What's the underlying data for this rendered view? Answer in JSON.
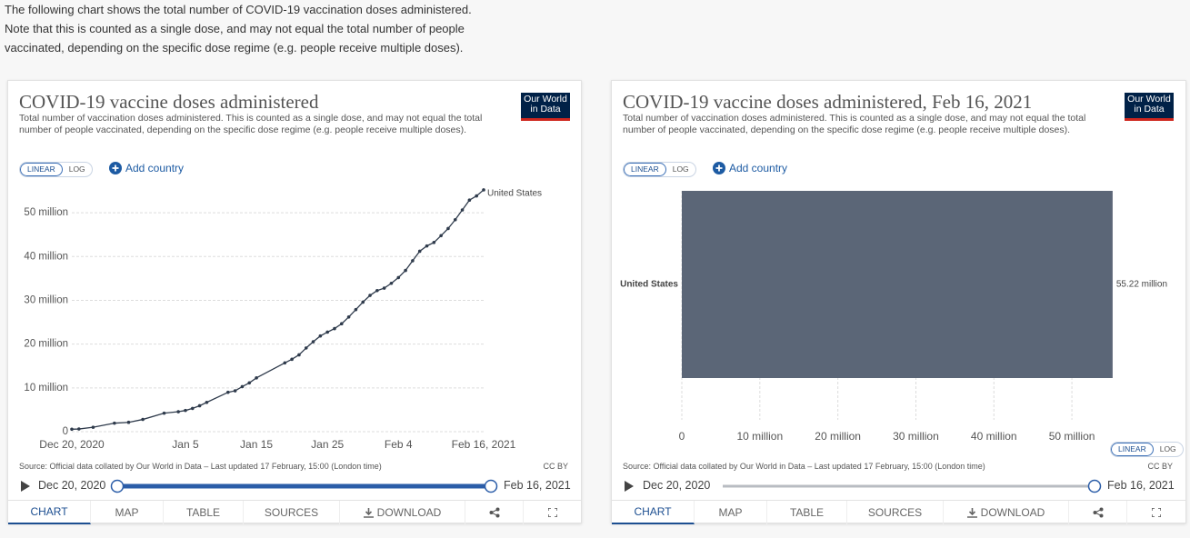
{
  "intro": [
    "The following chart shows the total number of COVID-19 vaccination doses administered.",
    "Note that this is counted as a single dose, and may not equal the total number of people",
    "vaccinated, depending on the specific dose regime (e.g. people receive multiple doses)."
  ],
  "panels": [
    {
      "logo": [
        "Our World",
        "in Data"
      ],
      "scale_buttons": [
        "LINEAR",
        "LOG"
      ],
      "add_country": "Add country",
      "source": "Source: Official data collated by Our World in Data – Last updated 17 February, 15:00 (London time)",
      "license": "CC BY",
      "timeline": {
        "start": "Dec 20, 2020",
        "end": "Feb 16, 2021"
      },
      "tabs": [
        "CHART",
        "MAP",
        "TABLE",
        "SOURCES",
        "DOWNLOAD"
      ]
    },
    {
      "logo": [
        "Our World",
        "in Data"
      ],
      "scale_buttons": [
        "LINEAR",
        "LOG"
      ],
      "add_country": "Add country",
      "x_scale_buttons": [
        "LINEAR",
        "LOG"
      ],
      "source": "Source: Official data collated by Our World in Data – Last updated 17 February, 15:00 (London time)",
      "license": "CC BY",
      "timeline": {
        "start": "Dec 20, 2020",
        "end": "Feb 16, 2021"
      },
      "tabs": [
        "CHART",
        "MAP",
        "TABLE",
        "SOURCES",
        "DOWNLOAD"
      ]
    }
  ],
  "chart_data": [
    {
      "type": "line",
      "title": "COVID-19 vaccine doses administered",
      "subtitle": "Total number of vaccination doses administered. This is counted as a single dose, and may not equal the total number of people vaccinated, depending on the specific dose regime (e.g. people receive multiple doses).",
      "x": [
        "2020-12-20",
        "2020-12-21",
        "2020-12-23",
        "2020-12-26",
        "2020-12-28",
        "2020-12-30",
        "2021-01-02",
        "2021-01-04",
        "2021-01-05",
        "2021-01-06",
        "2021-01-07",
        "2021-01-08",
        "2021-01-11",
        "2021-01-12",
        "2021-01-13",
        "2021-01-14",
        "2021-01-15",
        "2021-01-19",
        "2021-01-20",
        "2021-01-21",
        "2021-01-22",
        "2021-01-23",
        "2021-01-24",
        "2021-01-25",
        "2021-01-26",
        "2021-01-27",
        "2021-01-28",
        "2021-01-29",
        "2021-01-30",
        "2021-01-31",
        "2021-02-01",
        "2021-02-02",
        "2021-02-03",
        "2021-02-04",
        "2021-02-05",
        "2021-02-06",
        "2021-02-07",
        "2021-02-08",
        "2021-02-09",
        "2021-02-10",
        "2021-02-11",
        "2021-02-12",
        "2021-02-13",
        "2021-02-14",
        "2021-02-15",
        "2021-02-16"
      ],
      "series": [
        {
          "name": "United States",
          "color": "#2f3b4c",
          "values": [
            0.56,
            0.61,
            1.01,
            1.94,
            2.13,
            2.79,
            4.23,
            4.56,
            4.84,
            5.31,
            5.92,
            6.69,
            8.99,
            9.33,
            10.28,
            11.15,
            12.28,
            15.71,
            16.53,
            17.55,
            19.11,
            20.54,
            21.85,
            22.73,
            23.54,
            24.65,
            26.19,
            27.88,
            29.58,
            31.12,
            32.22,
            32.78,
            33.88,
            35.2,
            36.82,
            39.04,
            41.21,
            42.42,
            43.21,
            44.77,
            46.39,
            48.41,
            50.64,
            52.88,
            53.84,
            55.22
          ]
        }
      ],
      "xlim": [
        "2020-12-20",
        "2021-02-16"
      ],
      "xticks": [
        {
          "value": "2020-12-20",
          "label": "Dec 20, 2020"
        },
        {
          "value": "2021-01-05",
          "label": "Jan 5"
        },
        {
          "value": "2021-01-15",
          "label": "Jan 15"
        },
        {
          "value": "2021-01-25",
          "label": "Jan 25"
        },
        {
          "value": "2021-02-04",
          "label": "Feb 4"
        },
        {
          "value": "2021-02-16",
          "label": "Feb 16, 2021"
        }
      ],
      "ylim": [
        0,
        55
      ],
      "yticks": [
        0,
        {
          "value": 10,
          "label": "10 million"
        },
        {
          "value": 20,
          "label": "20 million"
        },
        {
          "value": 30,
          "label": "30 million"
        },
        {
          "value": 40,
          "label": "40 million"
        },
        {
          "value": 50,
          "label": "50 million"
        }
      ],
      "grid": true
    },
    {
      "type": "bar",
      "orientation": "horizontal",
      "title": "COVID-19 vaccine doses administered, Feb 16, 2021",
      "subtitle": "Total number of vaccination doses administered. This is counted as a single dose, and may not equal the total number of people vaccinated, depending on the specific dose regime (e.g. people receive multiple doses).",
      "categories": [
        "United States"
      ],
      "values": [
        55.22
      ],
      "value_labels": [
        "55.22 million"
      ],
      "color": "#5b6677",
      "xlim": [
        0,
        55
      ],
      "xticks": [
        0,
        {
          "value": 10,
          "label": "10 million"
        },
        {
          "value": 20,
          "label": "20 million"
        },
        {
          "value": 30,
          "label": "30 million"
        },
        {
          "value": 40,
          "label": "40 million"
        },
        {
          "value": 50,
          "label": "50 million"
        }
      ],
      "grid": true
    }
  ]
}
